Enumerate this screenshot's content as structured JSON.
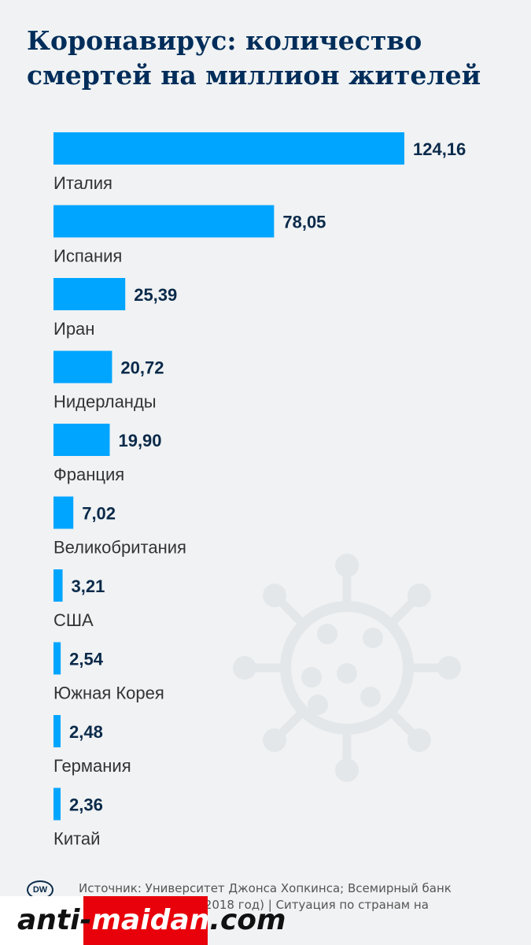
{
  "title": "Коронавирус: количество смертей на миллион жителей",
  "chart_data": {
    "type": "bar",
    "orientation": "horizontal",
    "title": "Коронавирус: количество смертей на миллион жителей",
    "categories": [
      "Италия",
      "Испания",
      "Иран",
      "Нидерланды",
      "Франция",
      "Великобритания",
      "США",
      "Южная Корея",
      "Германия",
      "Китай"
    ],
    "values": [
      124.16,
      78.05,
      25.39,
      20.72,
      19.9,
      7.02,
      3.21,
      2.54,
      2.48,
      2.36
    ],
    "value_labels": [
      "124,16",
      "78,05",
      "25,39",
      "20,72",
      "19,90",
      "7,02",
      "3,21",
      "2,54",
      "2,48",
      "2,36"
    ],
    "bar_color": "#00a5ff",
    "grid": false
  },
  "footer": {
    "logo": "DW",
    "source_line1": "Источник: Университет Джонса Хопкинса; Всемирный банк",
    "source_line2": "(население страни: 2018 год) | Ситуация по странам на"
  },
  "watermark": {
    "part1": "anti-",
    "part2": "maidan",
    "part3": ".com"
  },
  "colors": {
    "background": "#f0f2f3",
    "title": "#002d5a",
    "virus_icon": "#e4e7ea"
  }
}
